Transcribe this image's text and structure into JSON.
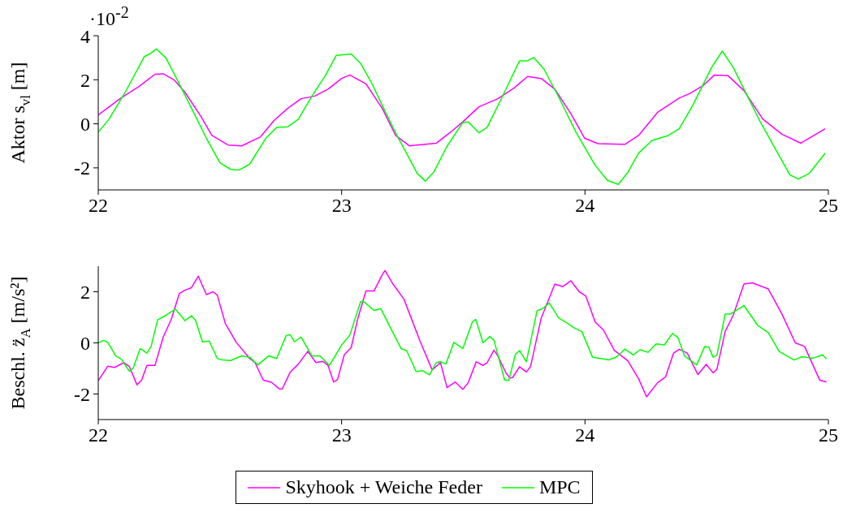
{
  "chart_data": [
    {
      "type": "line",
      "ylabel": "Aktor s$_{vl}$ [m]",
      "annotations": [
        "·10$^{-2}$"
      ],
      "xlim": [
        22,
        25
      ],
      "xticks": [
        22,
        23,
        24,
        25
      ],
      "ylim": [
        -3,
        4
      ],
      "yticks": [
        -2,
        0,
        2,
        4
      ],
      "legend": false,
      "series": [
        {
          "color": "#ff00ff",
          "x": [
            22.0,
            22.089,
            22.167,
            22.233,
            22.267,
            22.311,
            22.356,
            22.422,
            22.467,
            22.533,
            22.589,
            22.667,
            22.722,
            22.778,
            22.833,
            22.889,
            22.944,
            23.0,
            23.033,
            23.1,
            23.167,
            23.222,
            23.278,
            23.389,
            23.444,
            23.498,
            23.564,
            23.642,
            23.709,
            23.764,
            23.82,
            23.876,
            23.942,
            23.998,
            24.053,
            24.164,
            24.22,
            24.298,
            24.387,
            24.431,
            24.487,
            24.531,
            24.587,
            24.653,
            24.731,
            24.809,
            24.887,
            24.987
          ],
          "values": [
            0.4,
            1.14,
            1.69,
            2.25,
            2.27,
            2.0,
            1.44,
            0.33,
            -0.53,
            -0.96,
            -1.0,
            -0.59,
            0.15,
            0.7,
            1.14,
            1.26,
            1.57,
            2.06,
            2.22,
            1.81,
            0.7,
            -0.53,
            -1.0,
            -0.88,
            -0.41,
            0.09,
            0.77,
            1.14,
            1.63,
            2.15,
            2.06,
            1.57,
            0.46,
            -0.65,
            -0.9,
            -0.93,
            -0.53,
            0.52,
            1.17,
            1.38,
            1.75,
            2.21,
            2.19,
            1.51,
            0.21,
            -0.47,
            -0.88,
            -0.22
          ]
        },
        {
          "color": "#00ff00",
          "x": [
            22.0,
            22.044,
            22.111,
            22.189,
            22.211,
            22.239,
            22.278,
            22.333,
            22.389,
            22.444,
            22.5,
            22.544,
            22.578,
            22.622,
            22.689,
            22.733,
            22.778,
            22.822,
            22.878,
            22.933,
            22.978,
            23.039,
            23.078,
            23.122,
            23.178,
            23.233,
            23.311,
            23.344,
            23.378,
            23.433,
            23.498,
            23.52,
            23.564,
            23.598,
            23.664,
            23.731,
            23.764,
            23.789,
            23.831,
            23.887,
            23.964,
            24.042,
            24.092,
            24.137,
            24.176,
            24.22,
            24.276,
            24.342,
            24.387,
            24.442,
            24.52,
            24.564,
            24.609,
            24.72,
            24.842,
            24.876,
            24.92,
            24.987
          ],
          "values": [
            -0.38,
            0.21,
            1.44,
            3.05,
            3.17,
            3.4,
            2.99,
            1.81,
            0.58,
            -0.65,
            -1.77,
            -2.07,
            -2.1,
            -1.83,
            -0.65,
            -0.16,
            -0.14,
            0.21,
            1.26,
            2.19,
            3.11,
            3.17,
            2.74,
            1.88,
            0.58,
            -0.65,
            -2.26,
            -2.6,
            -2.2,
            -1.02,
            0.06,
            0.09,
            -0.41,
            -0.16,
            1.32,
            2.86,
            2.86,
            3.01,
            2.49,
            1.32,
            -0.41,
            -1.89,
            -2.57,
            -2.75,
            -2.2,
            -1.33,
            -0.75,
            -0.53,
            -0.22,
            0.83,
            2.56,
            3.3,
            2.56,
            0.09,
            -2.32,
            -2.51,
            -2.26,
            -1.33
          ]
        }
      ]
    },
    {
      "type": "line",
      "ylabel": "Beschl. z̈$_{A}$ [m/s²]",
      "xlim": [
        22,
        25
      ],
      "xticks": [
        22,
        23,
        24,
        25
      ],
      "ylim": [
        -3,
        3
      ],
      "yticks": [
        -2,
        0,
        2
      ],
      "legend": "bottom",
      "series": [
        {
          "name": "Skyhook + Weiche Feder",
          "color": "#ff00ff",
          "x": [
            22.0,
            22.039,
            22.067,
            22.106,
            22.128,
            22.159,
            22.178,
            22.2,
            22.233,
            22.267,
            22.3,
            22.333,
            22.356,
            22.383,
            22.411,
            22.444,
            22.472,
            22.489,
            22.522,
            22.567,
            22.622,
            22.644,
            22.678,
            22.711,
            22.744,
            22.756,
            22.789,
            22.822,
            22.861,
            22.894,
            22.922,
            22.944,
            22.967,
            22.983,
            23.011,
            23.039,
            23.067,
            23.1,
            23.133,
            23.167,
            23.178,
            23.211,
            23.256,
            23.322,
            23.372,
            23.406,
            23.433,
            23.467,
            23.498,
            23.52,
            23.553,
            23.581,
            23.598,
            23.626,
            23.642,
            23.676,
            23.692,
            23.703,
            23.731,
            23.759,
            23.776,
            23.82,
            23.876,
            23.909,
            23.942,
            23.976,
            24.003,
            24.042,
            24.076,
            24.12,
            24.176,
            24.22,
            24.253,
            24.298,
            24.331,
            24.364,
            24.387,
            24.42,
            24.464,
            24.498,
            24.526,
            24.542,
            24.576,
            24.609,
            24.653,
            24.687,
            24.753,
            24.809,
            24.864,
            24.902,
            24.964,
            24.992
          ],
          "values": [
            -1.48,
            -0.91,
            -0.96,
            -0.77,
            -0.93,
            -1.64,
            -1.46,
            -0.88,
            -0.88,
            0.23,
            0.92,
            1.93,
            2.06,
            2.16,
            2.61,
            1.89,
            2.0,
            1.87,
            0.76,
            0.02,
            -0.61,
            -0.77,
            -1.46,
            -1.54,
            -1.8,
            -1.8,
            -1.14,
            -0.83,
            -0.33,
            -0.77,
            -0.72,
            -0.88,
            -1.53,
            -1.44,
            -0.46,
            -0.19,
            0.97,
            2.03,
            2.03,
            2.67,
            2.83,
            2.3,
            1.71,
            0.07,
            -1.06,
            -0.77,
            -1.75,
            -1.53,
            -1.82,
            -1.56,
            -0.74,
            -0.88,
            -0.77,
            -0.28,
            -0.51,
            -1.19,
            -1.37,
            -1.35,
            -0.93,
            -1.14,
            -0.93,
            0.97,
            2.3,
            2.2,
            2.43,
            2.0,
            1.84,
            0.81,
            0.5,
            -0.29,
            -0.7,
            -1.4,
            -2.11,
            -1.56,
            -1.33,
            -0.4,
            -0.25,
            -0.4,
            -1.24,
            -0.84,
            -1.17,
            -1.03,
            0.45,
            1.08,
            2.3,
            2.35,
            2.11,
            1.13,
            0.0,
            -0.14,
            -1.45,
            -1.53
          ]
        },
        {
          "name": "MPC",
          "color": "#00ff00",
          "x": [
            22.0,
            22.022,
            22.039,
            22.072,
            22.094,
            22.128,
            22.144,
            22.172,
            22.2,
            22.217,
            22.244,
            22.278,
            22.317,
            22.356,
            22.383,
            22.4,
            22.428,
            22.456,
            22.489,
            22.511,
            22.544,
            22.589,
            22.622,
            22.656,
            22.7,
            22.733,
            22.772,
            22.789,
            22.806,
            22.833,
            22.878,
            22.911,
            22.95,
            23.0,
            23.033,
            23.078,
            23.089,
            23.133,
            23.161,
            23.2,
            23.244,
            23.267,
            23.306,
            23.333,
            23.361,
            23.389,
            23.406,
            23.428,
            23.461,
            23.498,
            23.537,
            23.551,
            23.581,
            23.609,
            23.626,
            23.67,
            23.687,
            23.714,
            23.731,
            23.759,
            23.803,
            23.826,
            23.853,
            23.892,
            23.926,
            23.953,
            23.987,
            24.031,
            24.064,
            24.098,
            24.131,
            24.164,
            24.198,
            24.226,
            24.259,
            24.292,
            24.326,
            24.359,
            24.381,
            24.409,
            24.459,
            24.492,
            24.509,
            24.526,
            24.542,
            24.576,
            24.598,
            24.653,
            24.709,
            24.753,
            24.798,
            24.859,
            24.892,
            24.937,
            24.976,
            24.992
          ],
          "values": [
            0.0,
            0.1,
            0.02,
            -0.51,
            -0.63,
            -1.11,
            -0.98,
            -0.22,
            -0.4,
            -0.14,
            0.9,
            1.08,
            1.32,
            0.87,
            1.06,
            0.87,
            0.04,
            0.07,
            -0.61,
            -0.67,
            -0.69,
            -0.51,
            -0.56,
            -0.86,
            -0.51,
            -0.61,
            0.29,
            0.32,
            0.04,
            0.23,
            -0.51,
            -0.51,
            -0.88,
            -0.08,
            0.29,
            1.61,
            1.63,
            1.27,
            1.34,
            0.6,
            -0.22,
            -0.3,
            -1.12,
            -1.09,
            -1.25,
            -0.77,
            -0.74,
            -0.83,
            0.02,
            -0.22,
            0.82,
            0.92,
            0.0,
            0.25,
            0.1,
            -1.46,
            -1.46,
            -0.45,
            -0.3,
            -0.74,
            1.26,
            1.34,
            1.56,
            0.97,
            0.78,
            0.6,
            0.44,
            -0.56,
            -0.61,
            -0.67,
            -0.54,
            -0.24,
            -0.47,
            -0.27,
            -0.37,
            -0.04,
            -0.08,
            0.37,
            0.22,
            -0.51,
            -0.86,
            -0.14,
            -0.17,
            -0.56,
            -0.49,
            1.13,
            1.13,
            1.46,
            0.69,
            0.4,
            -0.34,
            -0.67,
            -0.54,
            -0.6,
            -0.47,
            -0.63
          ]
        }
      ]
    }
  ]
}
